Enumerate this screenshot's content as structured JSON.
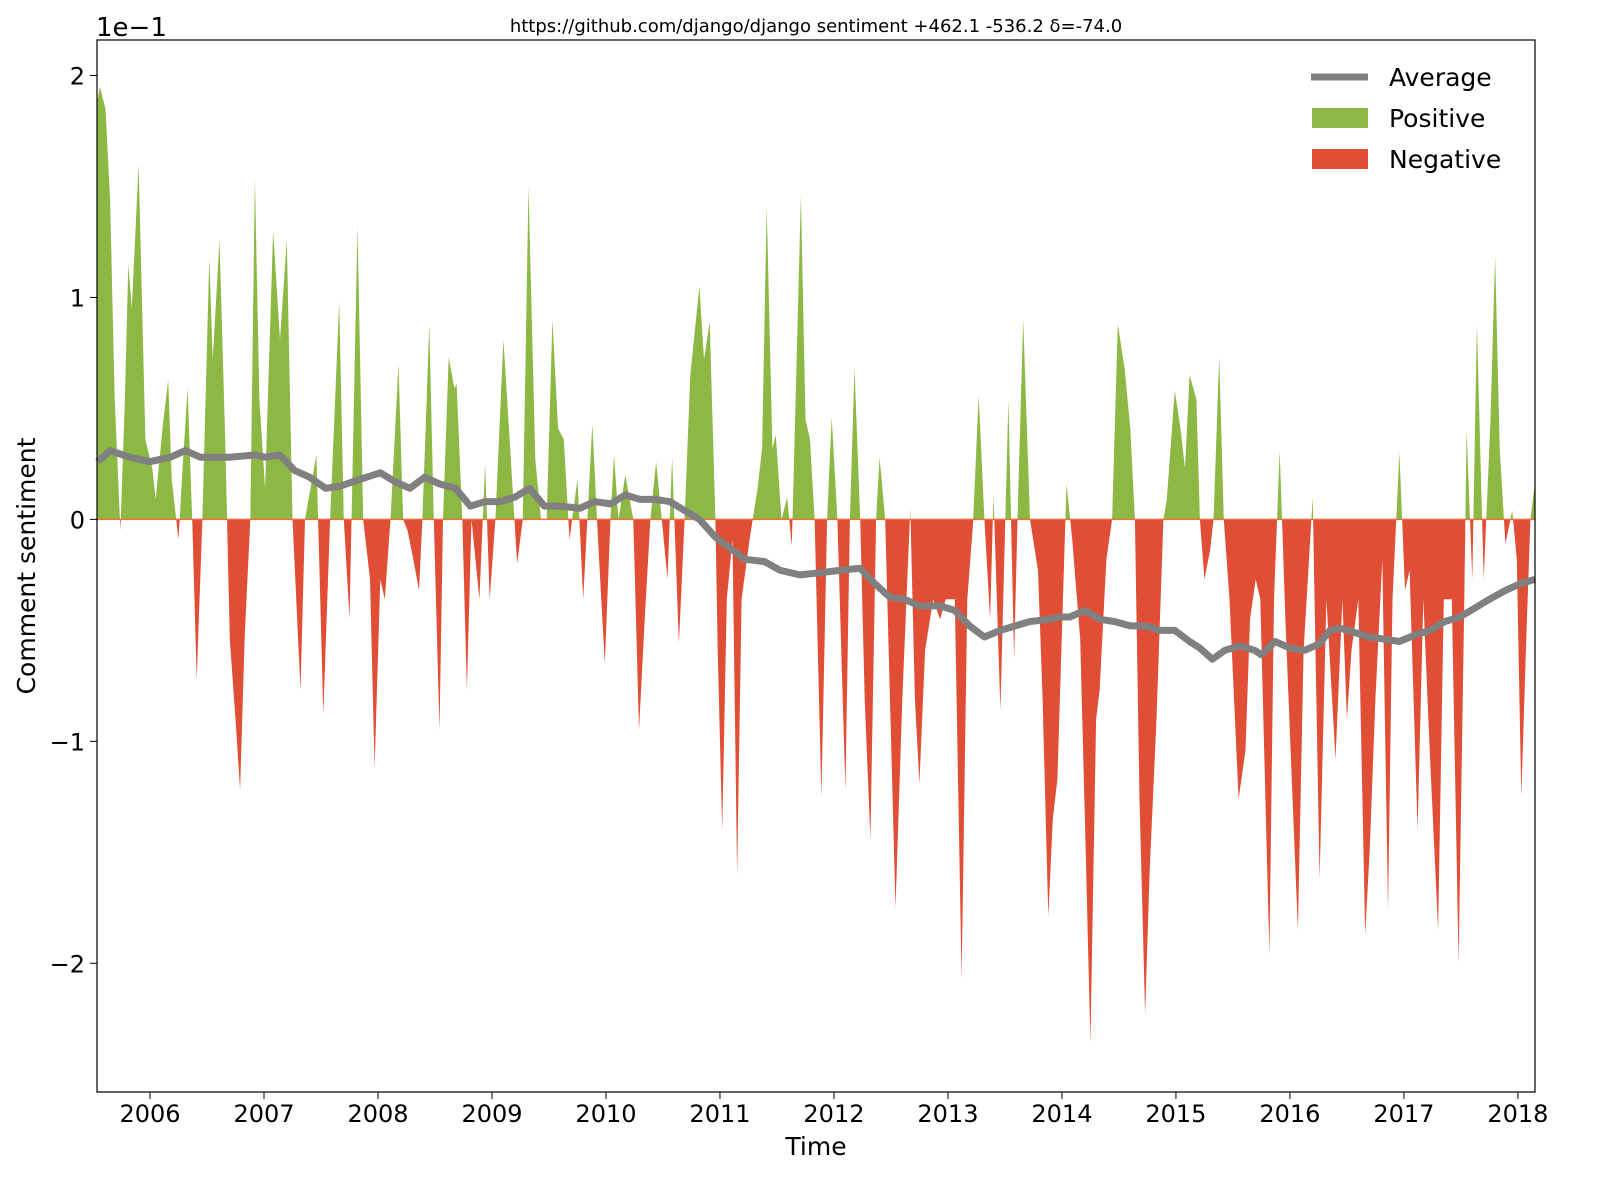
{
  "chart_data": {
    "type": "area",
    "title": "https://github.com/django/django sentiment +462.1 -536.2 δ=-74.0",
    "xlabel": "Time",
    "ylabel": "Comment sentiment",
    "y_offset_text": "1e−1",
    "xlim": [
      2005.535,
      2018.15
    ],
    "ylim": [
      -2.58,
      2.16
    ],
    "x_ticks": [
      2006,
      2007,
      2008,
      2009,
      2010,
      2011,
      2012,
      2013,
      2014,
      2015,
      2016,
      2017,
      2018
    ],
    "x_tick_labels": [
      "2006",
      "2007",
      "2008",
      "2009",
      "2010",
      "2011",
      "2012",
      "2013",
      "2014",
      "2015",
      "2016",
      "2017",
      "2018"
    ],
    "y_ticks": [
      2,
      1,
      0,
      -1,
      -2
    ],
    "y_tick_labels": [
      "2",
      "1",
      "0",
      "−1",
      "−2"
    ],
    "grid": false,
    "legend_placement": "top-right",
    "legend": [
      {
        "label": "Average",
        "color": "#808080",
        "kind": "line"
      },
      {
        "label": "Positive",
        "color": "#8db843",
        "kind": "patch"
      },
      {
        "label": "Negative",
        "color": "#e04e36",
        "kind": "patch"
      }
    ],
    "colors": {
      "positive": "#8db843",
      "negative": "#e04e36",
      "average": "#808080",
      "zero_line": "#e8743c"
    },
    "sentiment": [
      [
        2005.54,
        1.89
      ],
      [
        2005.56,
        1.95
      ],
      [
        2005.61,
        1.85
      ],
      [
        2005.65,
        1.44
      ],
      [
        2005.69,
        0.54
      ],
      [
        2005.74,
        -0.05
      ],
      [
        2005.78,
        0.54
      ],
      [
        2005.81,
        1.15
      ],
      [
        2005.84,
        0.95
      ],
      [
        2005.9,
        1.6
      ],
      [
        2005.96,
        0.36
      ],
      [
        2006.02,
        0.23
      ],
      [
        2006.05,
        0.09
      ],
      [
        2006.11,
        0.41
      ],
      [
        2006.16,
        0.63
      ],
      [
        2006.19,
        0.18
      ],
      [
        2006.25,
        -0.09
      ],
      [
        2006.29,
        0.27
      ],
      [
        2006.33,
        0.59
      ],
      [
        2006.37,
        0
      ],
      [
        2006.41,
        -0.72
      ],
      [
        2006.46,
        0
      ],
      [
        2006.52,
        1.18
      ],
      [
        2006.55,
        0.72
      ],
      [
        2006.61,
        1.26
      ],
      [
        2006.66,
        0.36
      ],
      [
        2006.7,
        -0.54
      ],
      [
        2006.75,
        -0.9
      ],
      [
        2006.79,
        -1.22
      ],
      [
        2006.83,
        -0.54
      ],
      [
        2006.88,
        0
      ],
      [
        2006.92,
        1.54
      ],
      [
        2006.96,
        0.54
      ],
      [
        2007.01,
        0.14
      ],
      [
        2007.08,
        1.3
      ],
      [
        2007.14,
        0.81
      ],
      [
        2007.2,
        1.26
      ],
      [
        2007.25,
        0
      ],
      [
        2007.32,
        -0.77
      ],
      [
        2007.36,
        0
      ],
      [
        2007.46,
        0.29
      ],
      [
        2007.52,
        -0.88
      ],
      [
        2007.58,
        0
      ],
      [
        2007.66,
        0.98
      ],
      [
        2007.7,
        0
      ],
      [
        2007.75,
        -0.45
      ],
      [
        2007.82,
        1.32
      ],
      [
        2007.87,
        0
      ],
      [
        2007.93,
        -0.27
      ],
      [
        2007.97,
        -1.12
      ],
      [
        2008.02,
        -0.27
      ],
      [
        2008.06,
        -0.36
      ],
      [
        2008.11,
        0
      ],
      [
        2008.18,
        0.7
      ],
      [
        2008.22,
        0
      ],
      [
        2008.26,
        -0.05
      ],
      [
        2008.31,
        -0.18
      ],
      [
        2008.36,
        -0.32
      ],
      [
        2008.39,
        0
      ],
      [
        2008.45,
        0.88
      ],
      [
        2008.49,
        0
      ],
      [
        2008.54,
        -0.95
      ],
      [
        2008.57,
        0
      ],
      [
        2008.62,
        0.73
      ],
      [
        2008.67,
        0.59
      ],
      [
        2008.69,
        0.61
      ],
      [
        2008.74,
        0
      ],
      [
        2008.78,
        -0.77
      ],
      [
        2008.82,
        0
      ],
      [
        2008.89,
        -0.36
      ],
      [
        2008.94,
        0.25
      ],
      [
        2008.98,
        -0.36
      ],
      [
        2009.03,
        0
      ],
      [
        2009.1,
        0.81
      ],
      [
        2009.16,
        0.32
      ],
      [
        2009.22,
        -0.2
      ],
      [
        2009.27,
        0
      ],
      [
        2009.32,
        1.5
      ],
      [
        2009.38,
        0.27
      ],
      [
        2009.43,
        0
      ],
      [
        2009.48,
        0
      ],
      [
        2009.53,
        0.9
      ],
      [
        2009.58,
        0.41
      ],
      [
        2009.63,
        0.36
      ],
      [
        2009.68,
        -0.09
      ],
      [
        2009.75,
        0.18
      ],
      [
        2009.8,
        -0.36
      ],
      [
        2009.88,
        0.43
      ],
      [
        2009.93,
        -0.09
      ],
      [
        2009.99,
        -0.65
      ],
      [
        2010.04,
        0
      ],
      [
        2010.07,
        0.29
      ],
      [
        2010.11,
        0
      ],
      [
        2010.17,
        0.2
      ],
      [
        2010.24,
        0
      ],
      [
        2010.29,
        -0.95
      ],
      [
        2010.34,
        -0.45
      ],
      [
        2010.39,
        0
      ],
      [
        2010.44,
        0.26
      ],
      [
        2010.49,
        0
      ],
      [
        2010.54,
        -0.27
      ],
      [
        2010.58,
        0.28
      ],
      [
        2010.64,
        -0.56
      ],
      [
        2010.69,
        0
      ],
      [
        2010.74,
        0.65
      ],
      [
        2010.82,
        1.05
      ],
      [
        2010.86,
        0.72
      ],
      [
        2010.91,
        0.89
      ],
      [
        2010.96,
        0
      ],
      [
        2010.98,
        -0.59
      ],
      [
        2011.02,
        -1.4
      ],
      [
        2011.06,
        -0.36
      ],
      [
        2011.11,
        -0.09
      ],
      [
        2011.15,
        -1.6
      ],
      [
        2011.19,
        -0.36
      ],
      [
        2011.26,
        -0.09
      ],
      [
        2011.33,
        0.14
      ],
      [
        2011.37,
        0.32
      ],
      [
        2011.41,
        1.41
      ],
      [
        2011.46,
        0.32
      ],
      [
        2011.49,
        0.38
      ],
      [
        2011.54,
        0
      ],
      [
        2011.59,
        0.1
      ],
      [
        2011.63,
        -0.12
      ],
      [
        2011.71,
        1.46
      ],
      [
        2011.75,
        0.45
      ],
      [
        2011.79,
        0.36
      ],
      [
        2011.83,
        0
      ],
      [
        2011.89,
        -1.25
      ],
      [
        2011.94,
        0
      ],
      [
        2011.98,
        0.46
      ],
      [
        2012.03,
        0
      ],
      [
        2012.1,
        -1.22
      ],
      [
        2012.14,
        0
      ],
      [
        2012.18,
        0.68
      ],
      [
        2012.23,
        0
      ],
      [
        2012.27,
        -0.81
      ],
      [
        2012.32,
        -1.44
      ],
      [
        2012.37,
        0
      ],
      [
        2012.4,
        0.28
      ],
      [
        2012.45,
        0
      ],
      [
        2012.54,
        -1.75
      ],
      [
        2012.6,
        -0.81
      ],
      [
        2012.67,
        0.05
      ],
      [
        2012.71,
        -0.81
      ],
      [
        2012.75,
        -1.19
      ],
      [
        2012.8,
        -0.59
      ],
      [
        2012.87,
        -0.36
      ],
      [
        2012.93,
        -0.45
      ],
      [
        2012.98,
        -0.36
      ],
      [
        2013.06,
        -0.36
      ],
      [
        2013.12,
        -2.07
      ],
      [
        2013.17,
        -0.36
      ],
      [
        2013.22,
        -0.02
      ],
      [
        2013.27,
        0.56
      ],
      [
        2013.32,
        0
      ],
      [
        2013.37,
        -0.45
      ],
      [
        2013.4,
        0.11
      ],
      [
        2013.46,
        -0.86
      ],
      [
        2013.53,
        0.54
      ],
      [
        2013.58,
        -0.63
      ],
      [
        2013.61,
        0
      ],
      [
        2013.66,
        0.9
      ],
      [
        2013.72,
        0
      ],
      [
        2013.79,
        -0.23
      ],
      [
        2013.83,
        -0.81
      ],
      [
        2013.88,
        -1.79
      ],
      [
        2013.92,
        -1.35
      ],
      [
        2013.96,
        -1.17
      ],
      [
        2014.04,
        0.16
      ],
      [
        2014.09,
        -0.09
      ],
      [
        2014.16,
        -0.54
      ],
      [
        2014.21,
        -1.53
      ],
      [
        2014.25,
        -2.36
      ],
      [
        2014.3,
        -0.9
      ],
      [
        2014.33,
        -0.77
      ],
      [
        2014.39,
        -0.18
      ],
      [
        2014.44,
        0
      ],
      [
        2014.49,
        0.88
      ],
      [
        2014.55,
        0.68
      ],
      [
        2014.6,
        0.41
      ],
      [
        2014.64,
        0
      ],
      [
        2014.68,
        -1.26
      ],
      [
        2014.73,
        -2.23
      ],
      [
        2014.77,
        -1.58
      ],
      [
        2014.83,
        -0.9
      ],
      [
        2014.89,
        0
      ],
      [
        2014.92,
        0.09
      ],
      [
        2014.99,
        0.58
      ],
      [
        2015.04,
        0.41
      ],
      [
        2015.08,
        0.23
      ],
      [
        2015.12,
        0.65
      ],
      [
        2015.18,
        0.54
      ],
      [
        2015.21,
        0
      ],
      [
        2015.25,
        -0.27
      ],
      [
        2015.3,
        -0.14
      ],
      [
        2015.33,
        0
      ],
      [
        2015.38,
        0.73
      ],
      [
        2015.42,
        0
      ],
      [
        2015.47,
        -0.36
      ],
      [
        2015.55,
        -1.26
      ],
      [
        2015.61,
        -1.04
      ],
      [
        2015.65,
        -0.45
      ],
      [
        2015.7,
        -0.27
      ],
      [
        2015.74,
        -0.36
      ],
      [
        2015.82,
        -1.96
      ],
      [
        2015.86,
        -0.36
      ],
      [
        2015.91,
        0.31
      ],
      [
        2015.96,
        -0.45
      ],
      [
        2016.02,
        -1.22
      ],
      [
        2016.07,
        -1.85
      ],
      [
        2016.12,
        -0.59
      ],
      [
        2016.2,
        0.1
      ],
      [
        2016.26,
        -1.62
      ],
      [
        2016.32,
        -0.36
      ],
      [
        2016.4,
        -1.08
      ],
      [
        2016.46,
        -0.36
      ],
      [
        2016.5,
        -0.9
      ],
      [
        2016.54,
        -0.59
      ],
      [
        2016.6,
        -0.36
      ],
      [
        2016.66,
        -1.87
      ],
      [
        2016.7,
        -1.49
      ],
      [
        2016.75,
        -0.81
      ],
      [
        2016.81,
        -0.18
      ],
      [
        2016.86,
        -1.76
      ],
      [
        2016.9,
        -0.36
      ],
      [
        2016.96,
        0.3
      ],
      [
        2017.01,
        -0.32
      ],
      [
        2017.05,
        -0.23
      ],
      [
        2017.12,
        -1.4
      ],
      [
        2017.17,
        -0.36
      ],
      [
        2017.23,
        -1.08
      ],
      [
        2017.3,
        -1.85
      ],
      [
        2017.35,
        -0.36
      ],
      [
        2017.42,
        -0.36
      ],
      [
        2017.48,
        -2.0
      ],
      [
        2017.53,
        -0.36
      ],
      [
        2017.55,
        0.4
      ],
      [
        2017.6,
        -0.27
      ],
      [
        2017.64,
        0.88
      ],
      [
        2017.7,
        -0.27
      ],
      [
        2017.76,
        0.45
      ],
      [
        2017.8,
        1.19
      ],
      [
        2017.84,
        0.32
      ],
      [
        2017.89,
        -0.11
      ],
      [
        2017.95,
        0.04
      ],
      [
        2017.99,
        -0.18
      ],
      [
        2018.03,
        -1.25
      ],
      [
        2018.07,
        -0.59
      ],
      [
        2018.11,
        0
      ],
      [
        2018.15,
        0.17
      ]
    ],
    "average": [
      [
        2005.54,
        0.26
      ],
      [
        2005.65,
        0.31
      ],
      [
        2005.82,
        0.28
      ],
      [
        2006.0,
        0.26
      ],
      [
        2006.18,
        0.28
      ],
      [
        2006.31,
        0.31
      ],
      [
        2006.44,
        0.28
      ],
      [
        2006.7,
        0.28
      ],
      [
        2006.92,
        0.29
      ],
      [
        2007.01,
        0.28
      ],
      [
        2007.14,
        0.29
      ],
      [
        2007.27,
        0.22
      ],
      [
        2007.4,
        0.19
      ],
      [
        2007.54,
        0.14
      ],
      [
        2007.67,
        0.15
      ],
      [
        2007.84,
        0.18
      ],
      [
        2008.02,
        0.21
      ],
      [
        2008.15,
        0.17
      ],
      [
        2008.28,
        0.14
      ],
      [
        2008.41,
        0.19
      ],
      [
        2008.54,
        0.16
      ],
      [
        2008.68,
        0.14
      ],
      [
        2008.81,
        0.06
      ],
      [
        2008.94,
        0.08
      ],
      [
        2009.07,
        0.08
      ],
      [
        2009.2,
        0.1
      ],
      [
        2009.33,
        0.14
      ],
      [
        2009.46,
        0.06
      ],
      [
        2009.6,
        0.06
      ],
      [
        2009.77,
        0.05
      ],
      [
        2009.9,
        0.08
      ],
      [
        2010.04,
        0.07
      ],
      [
        2010.17,
        0.11
      ],
      [
        2010.3,
        0.09
      ],
      [
        2010.43,
        0.09
      ],
      [
        2010.56,
        0.08
      ],
      [
        2010.69,
        0.04
      ],
      [
        2010.82,
        0
      ],
      [
        2010.96,
        -0.08
      ],
      [
        2011.09,
        -0.13
      ],
      [
        2011.22,
        -0.18
      ],
      [
        2011.39,
        -0.19
      ],
      [
        2011.53,
        -0.23
      ],
      [
        2011.7,
        -0.25
      ],
      [
        2011.88,
        -0.24
      ],
      [
        2012.05,
        -0.23
      ],
      [
        2012.23,
        -0.22
      ],
      [
        2012.36,
        -0.29
      ],
      [
        2012.49,
        -0.35
      ],
      [
        2012.62,
        -0.36
      ],
      [
        2012.75,
        -0.39
      ],
      [
        2012.93,
        -0.39
      ],
      [
        2013.06,
        -0.41
      ],
      [
        2013.19,
        -0.48
      ],
      [
        2013.32,
        -0.53
      ],
      [
        2013.46,
        -0.5
      ],
      [
        2013.59,
        -0.48
      ],
      [
        2013.72,
        -0.46
      ],
      [
        2013.89,
        -0.45
      ],
      [
        2013.98,
        -0.44
      ],
      [
        2014.07,
        -0.44
      ],
      [
        2014.2,
        -0.41
      ],
      [
        2014.33,
        -0.45
      ],
      [
        2014.46,
        -0.46
      ],
      [
        2014.6,
        -0.48
      ],
      [
        2014.73,
        -0.48
      ],
      [
        2014.86,
        -0.5
      ],
      [
        2014.99,
        -0.5
      ],
      [
        2015.12,
        -0.55
      ],
      [
        2015.21,
        -0.58
      ],
      [
        2015.32,
        -0.63
      ],
      [
        2015.43,
        -0.59
      ],
      [
        2015.56,
        -0.57
      ],
      [
        2015.69,
        -0.59
      ],
      [
        2015.75,
        -0.61
      ],
      [
        2015.87,
        -0.55
      ],
      [
        2016.0,
        -0.58
      ],
      [
        2016.13,
        -0.59
      ],
      [
        2016.26,
        -0.56
      ],
      [
        2016.35,
        -0.5
      ],
      [
        2016.44,
        -0.49
      ],
      [
        2016.57,
        -0.51
      ],
      [
        2016.7,
        -0.53
      ],
      [
        2016.83,
        -0.54
      ],
      [
        2016.96,
        -0.55
      ],
      [
        2017.1,
        -0.52
      ],
      [
        2017.23,
        -0.5
      ],
      [
        2017.36,
        -0.46
      ],
      [
        2017.49,
        -0.44
      ],
      [
        2017.62,
        -0.4
      ],
      [
        2017.75,
        -0.36
      ],
      [
        2017.89,
        -0.32
      ],
      [
        2018.02,
        -0.29
      ],
      [
        2018.15,
        -0.27
      ]
    ]
  }
}
